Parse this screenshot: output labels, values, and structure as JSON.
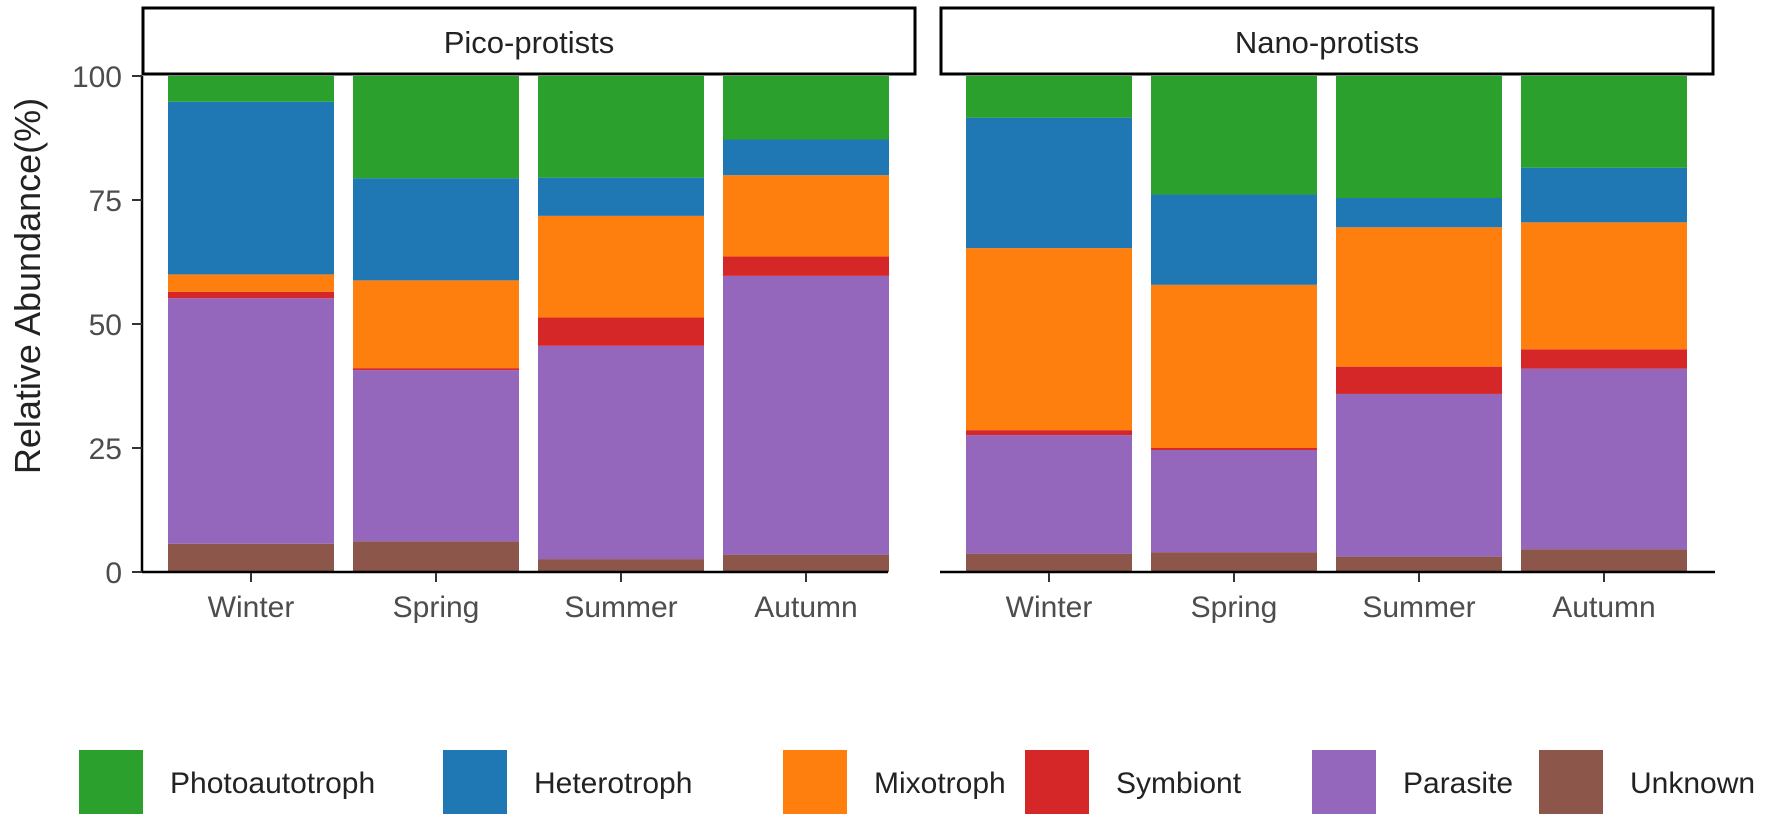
{
  "chart_data": {
    "type": "bar",
    "stacked": true,
    "ylabel": "Relative Abundance(%)",
    "xlabel": "",
    "ylim": [
      0,
      100
    ],
    "yticks": [
      "0",
      "25",
      "50",
      "75",
      "100"
    ],
    "grid": false,
    "legend_position": "bottom",
    "stack_order": [
      "Unknown",
      "Parasite",
      "Symbiont",
      "Mixotroph",
      "Heterotroph",
      "Photoautotroph"
    ],
    "legend": [
      {
        "name": "Photoautotroph",
        "color": "#2ca02c"
      },
      {
        "name": "Heterotroph",
        "color": "#1f77b4"
      },
      {
        "name": "Mixotroph",
        "color": "#ff7f0e"
      },
      {
        "name": "Symbiont",
        "color": "#d62728"
      },
      {
        "name": "Parasite",
        "color": "#9467bd"
      },
      {
        "name": "Unknown",
        "color": "#8c564b"
      }
    ],
    "panels": [
      {
        "title": "Pico-protists",
        "categories": [
          "Winter",
          "Spring",
          "Summer",
          "Autumn"
        ],
        "series": [
          {
            "name": "Unknown",
            "values": [
              5.7,
              6.2,
              2.6,
              3.5
            ]
          },
          {
            "name": "Parasite",
            "values": [
              49.5,
              34.5,
              43.0,
              56.2
            ]
          },
          {
            "name": "Symbiont",
            "values": [
              1.3,
              0.4,
              5.7,
              3.9
            ]
          },
          {
            "name": "Mixotroph",
            "values": [
              3.5,
              17.7,
              20.5,
              16.4
            ]
          },
          {
            "name": "Heterotroph",
            "values": [
              34.8,
              20.6,
              7.7,
              7.2
            ]
          },
          {
            "name": "Photoautotroph",
            "values": [
              5.2,
              20.6,
              20.5,
              12.8
            ]
          }
        ]
      },
      {
        "title": "Nano-protists",
        "categories": [
          "Winter",
          "Spring",
          "Summer",
          "Autumn"
        ],
        "series": [
          {
            "name": "Unknown",
            "values": [
              3.7,
              4.0,
              3.1,
              4.6
            ]
          },
          {
            "name": "Parasite",
            "values": [
              23.9,
              20.6,
              32.8,
              36.4
            ]
          },
          {
            "name": "Symbiont",
            "values": [
              1.0,
              0.4,
              5.5,
              3.9
            ]
          },
          {
            "name": "Mixotroph",
            "values": [
              36.7,
              32.9,
              28.1,
              25.6
            ]
          },
          {
            "name": "Heterotroph",
            "values": [
              26.3,
              18.2,
              5.9,
              11.0
            ]
          },
          {
            "name": "Photoautotroph",
            "values": [
              8.4,
              23.9,
              24.6,
              18.5
            ]
          }
        ]
      }
    ]
  }
}
